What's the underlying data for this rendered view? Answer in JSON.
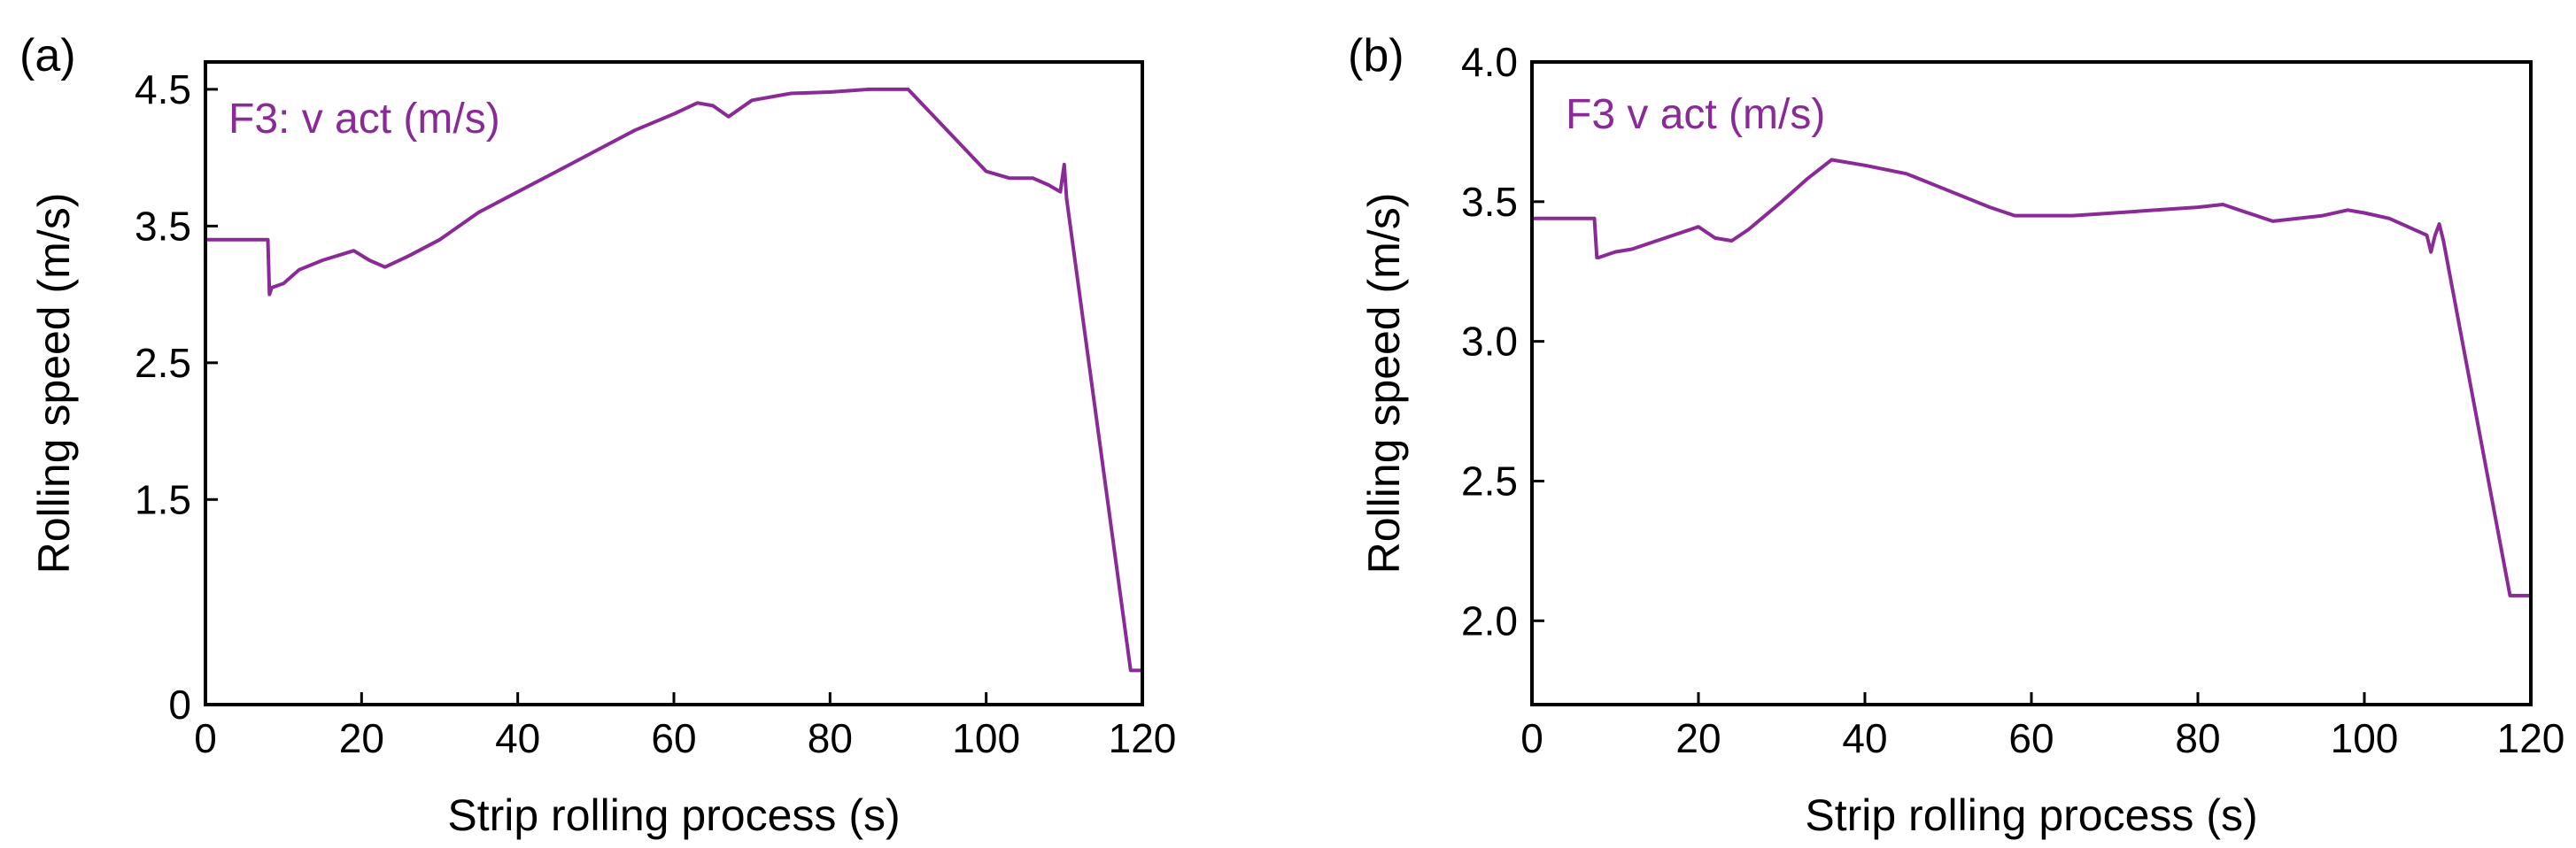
{
  "chart_data": [
    {
      "type": "line",
      "panel_label": "(a)",
      "xlabel": "Strip rolling process (s)",
      "ylabel": "Rolling speed (m/s)",
      "legend": "F3: v act (m/s)",
      "color": "#8a2a96",
      "xlim": [
        0,
        120
      ],
      "ylim": [
        0,
        4.7
      ],
      "x_ticks": [
        0,
        20,
        40,
        60,
        80,
        100,
        120
      ],
      "x_tick_labels": [
        "0",
        "20",
        "40",
        "60",
        "80",
        "100",
        "120"
      ],
      "y_ticks": [
        0,
        1.5,
        2.5,
        3.5,
        4.5
      ],
      "y_tick_labels": [
        "0",
        "1.5",
        "2.5",
        "3.5",
        "4.5"
      ],
      "series": [
        {
          "name": "F3: v act (m/s)",
          "x": [
            0,
            8,
            8.2,
            8.5,
            10,
            12,
            15,
            19,
            21,
            23,
            26,
            30,
            35,
            40,
            45,
            50,
            55,
            60,
            63,
            65,
            67,
            70,
            75,
            80,
            85,
            90,
            95,
            100,
            103,
            106,
            108,
            109.5,
            110,
            110.3,
            118.5,
            120
          ],
          "y": [
            3.4,
            3.4,
            3.0,
            3.05,
            3.08,
            3.18,
            3.25,
            3.32,
            3.25,
            3.2,
            3.28,
            3.4,
            3.6,
            3.75,
            3.9,
            4.05,
            4.2,
            4.32,
            4.4,
            4.38,
            4.3,
            4.42,
            4.47,
            4.48,
            4.5,
            4.5,
            4.2,
            3.9,
            3.85,
            3.85,
            3.8,
            3.75,
            3.95,
            3.7,
            0.25,
            0.25
          ]
        }
      ]
    },
    {
      "type": "line",
      "panel_label": "(b)",
      "xlabel": "Strip rolling process (s)",
      "ylabel": "Rolling speed (m/s)",
      "legend": "F3 v act (m/s)",
      "color": "#8a2a96",
      "xlim": [
        0,
        120
      ],
      "ylim": [
        1.7,
        4.0
      ],
      "x_ticks": [
        0,
        20,
        40,
        60,
        80,
        100,
        120
      ],
      "x_tick_labels": [
        "0",
        "20",
        "40",
        "60",
        "80",
        "100",
        "120"
      ],
      "y_ticks": [
        2.0,
        2.5,
        3.0,
        3.5,
        4.0
      ],
      "y_tick_labels": [
        "2.0",
        "2.5",
        "3.0",
        "3.5",
        "4.0"
      ],
      "series": [
        {
          "name": "F3 v act (m/s)",
          "x": [
            0,
            7.5,
            7.8,
            8,
            10,
            12,
            15,
            19,
            20,
            22,
            24,
            26,
            30,
            33,
            36,
            40,
            45,
            50,
            55,
            58,
            60,
            65,
            70,
            75,
            80,
            83,
            86,
            89,
            92,
            95,
            98,
            100,
            103,
            106,
            107.5,
            108,
            108.5,
            109,
            109.5,
            117.5,
            120
          ],
          "y": [
            3.44,
            3.44,
            3.3,
            3.3,
            3.32,
            3.33,
            3.36,
            3.4,
            3.41,
            3.37,
            3.36,
            3.4,
            3.5,
            3.58,
            3.65,
            3.63,
            3.6,
            3.54,
            3.48,
            3.45,
            3.45,
            3.45,
            3.46,
            3.47,
            3.48,
            3.49,
            3.46,
            3.43,
            3.44,
            3.45,
            3.47,
            3.46,
            3.44,
            3.4,
            3.38,
            3.32,
            3.38,
            3.42,
            3.36,
            2.09,
            2.09
          ]
        }
      ]
    }
  ]
}
